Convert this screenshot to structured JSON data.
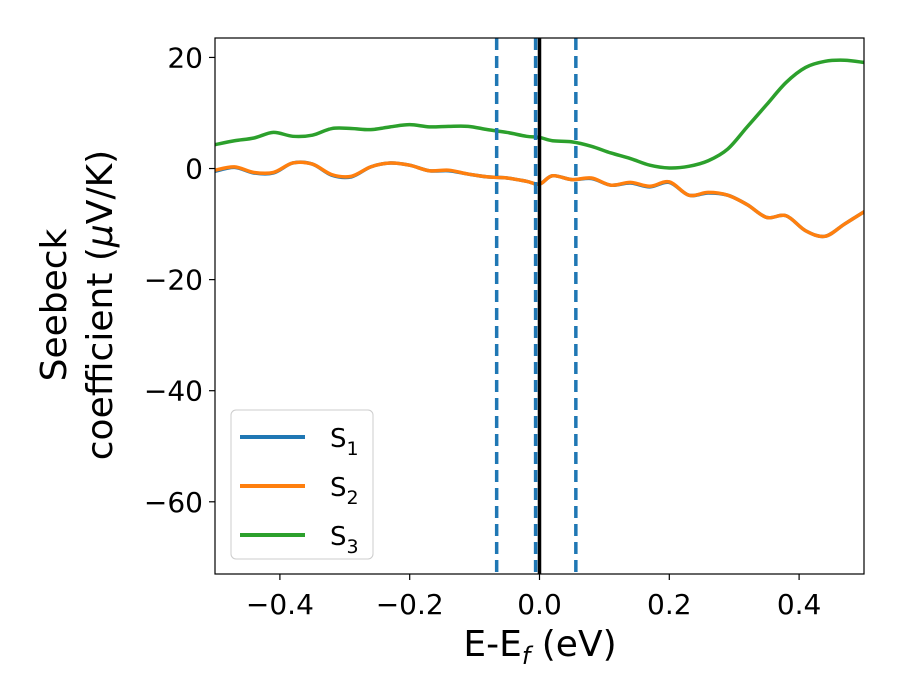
{
  "chart_data": {
    "type": "line",
    "xlabel_main": "E-E",
    "xlabel_sub": "f",
    "xlabel_unit": " (eV)",
    "ylabel_line1": "Seebeck",
    "ylabel_line2_text": "coefficient  (",
    "ylabel_line2_mu": "μ",
    "ylabel_line2_unit": "V/K)",
    "xlim": [
      -0.5,
      0.5
    ],
    "ylim": [
      -73,
      23.5
    ],
    "xticks": [
      -0.4,
      -0.2,
      0.0,
      0.2,
      0.4
    ],
    "xtick_labels": [
      "−0.4",
      "−0.2",
      "0.0",
      "0.2",
      "0.4"
    ],
    "yticks": [
      20,
      0,
      -20,
      -40,
      -60
    ],
    "ytick_labels": [
      "20",
      "0",
      "−20",
      "−40",
      "−60"
    ],
    "grid": false,
    "legend_position": "lower-left",
    "vlines": [
      {
        "x": -0.066,
        "style": "dashed",
        "color": "#1f77b4"
      },
      {
        "x": -0.006,
        "style": "dashed",
        "color": "#1f77b4"
      },
      {
        "x": 0.056,
        "style": "dashed",
        "color": "#1f77b4"
      },
      {
        "x": 0.0,
        "style": "solid",
        "color": "#000000"
      }
    ],
    "series": [
      {
        "name": "S",
        "sub": "1",
        "color": "#1f77b4",
        "x": [
          -0.5,
          -0.47,
          -0.44,
          -0.41,
          -0.38,
          -0.35,
          -0.32,
          -0.29,
          -0.26,
          -0.23,
          -0.2,
          -0.17,
          -0.14,
          -0.11,
          -0.08,
          -0.05,
          -0.02,
          0.0,
          0.02,
          0.05,
          0.08,
          0.11,
          0.14,
          0.17,
          0.2,
          0.23,
          0.26,
          0.29,
          0.32,
          0.35,
          0.38,
          0.41,
          0.44,
          0.47,
          0.5
        ],
        "values": [
          -0.5,
          0.2,
          -0.8,
          -0.8,
          1.0,
          0.8,
          -1.2,
          -1.5,
          0.3,
          1.0,
          0.6,
          -0.4,
          -0.4,
          -1.0,
          -1.5,
          -1.7,
          -2.3,
          -2.8,
          -1.3,
          -2.0,
          -1.8,
          -3.0,
          -2.6,
          -3.3,
          -2.5,
          -4.8,
          -4.4,
          -4.8,
          -6.5,
          -8.8,
          -8.5,
          -11.2,
          -12.2,
          -10.0,
          -7.8
        ]
      },
      {
        "name": "S",
        "sub": "2",
        "color": "#ff7f0e",
        "x": [
          -0.5,
          -0.47,
          -0.44,
          -0.41,
          -0.38,
          -0.35,
          -0.32,
          -0.29,
          -0.26,
          -0.23,
          -0.2,
          -0.17,
          -0.14,
          -0.11,
          -0.08,
          -0.05,
          -0.02,
          0.0,
          0.02,
          0.05,
          0.08,
          0.11,
          0.14,
          0.17,
          0.2,
          0.23,
          0.26,
          0.29,
          0.32,
          0.35,
          0.38,
          0.41,
          0.44,
          0.47,
          0.5
        ],
        "values": [
          -0.3,
          0.3,
          -0.7,
          -0.7,
          1.0,
          0.8,
          -1.1,
          -1.4,
          0.3,
          1.0,
          0.6,
          -0.4,
          -0.3,
          -1.0,
          -1.5,
          -1.7,
          -2.3,
          -2.8,
          -1.3,
          -2.0,
          -1.7,
          -3.0,
          -2.5,
          -3.2,
          -2.4,
          -4.8,
          -4.3,
          -4.8,
          -6.5,
          -8.8,
          -8.5,
          -11.2,
          -12.2,
          -10.0,
          -7.8
        ]
      },
      {
        "name": "S",
        "sub": "3",
        "color": "#2ca02c",
        "x": [
          -0.5,
          -0.47,
          -0.44,
          -0.41,
          -0.38,
          -0.35,
          -0.32,
          -0.29,
          -0.26,
          -0.23,
          -0.2,
          -0.17,
          -0.14,
          -0.11,
          -0.08,
          -0.05,
          -0.02,
          0.0,
          0.02,
          0.05,
          0.08,
          0.11,
          0.14,
          0.17,
          0.2,
          0.23,
          0.26,
          0.29,
          0.32,
          0.35,
          0.38,
          0.41,
          0.44,
          0.47,
          0.5
        ],
        "values": [
          4.3,
          5.0,
          5.5,
          6.5,
          5.8,
          6.0,
          7.2,
          7.2,
          7.0,
          7.5,
          7.9,
          7.5,
          7.6,
          7.6,
          7.0,
          6.5,
          5.8,
          5.6,
          5.0,
          4.8,
          4.0,
          2.8,
          1.8,
          0.6,
          0.1,
          0.4,
          1.4,
          3.5,
          7.5,
          11.5,
          15.5,
          18.2,
          19.3,
          19.5,
          19.1
        ]
      }
    ]
  }
}
